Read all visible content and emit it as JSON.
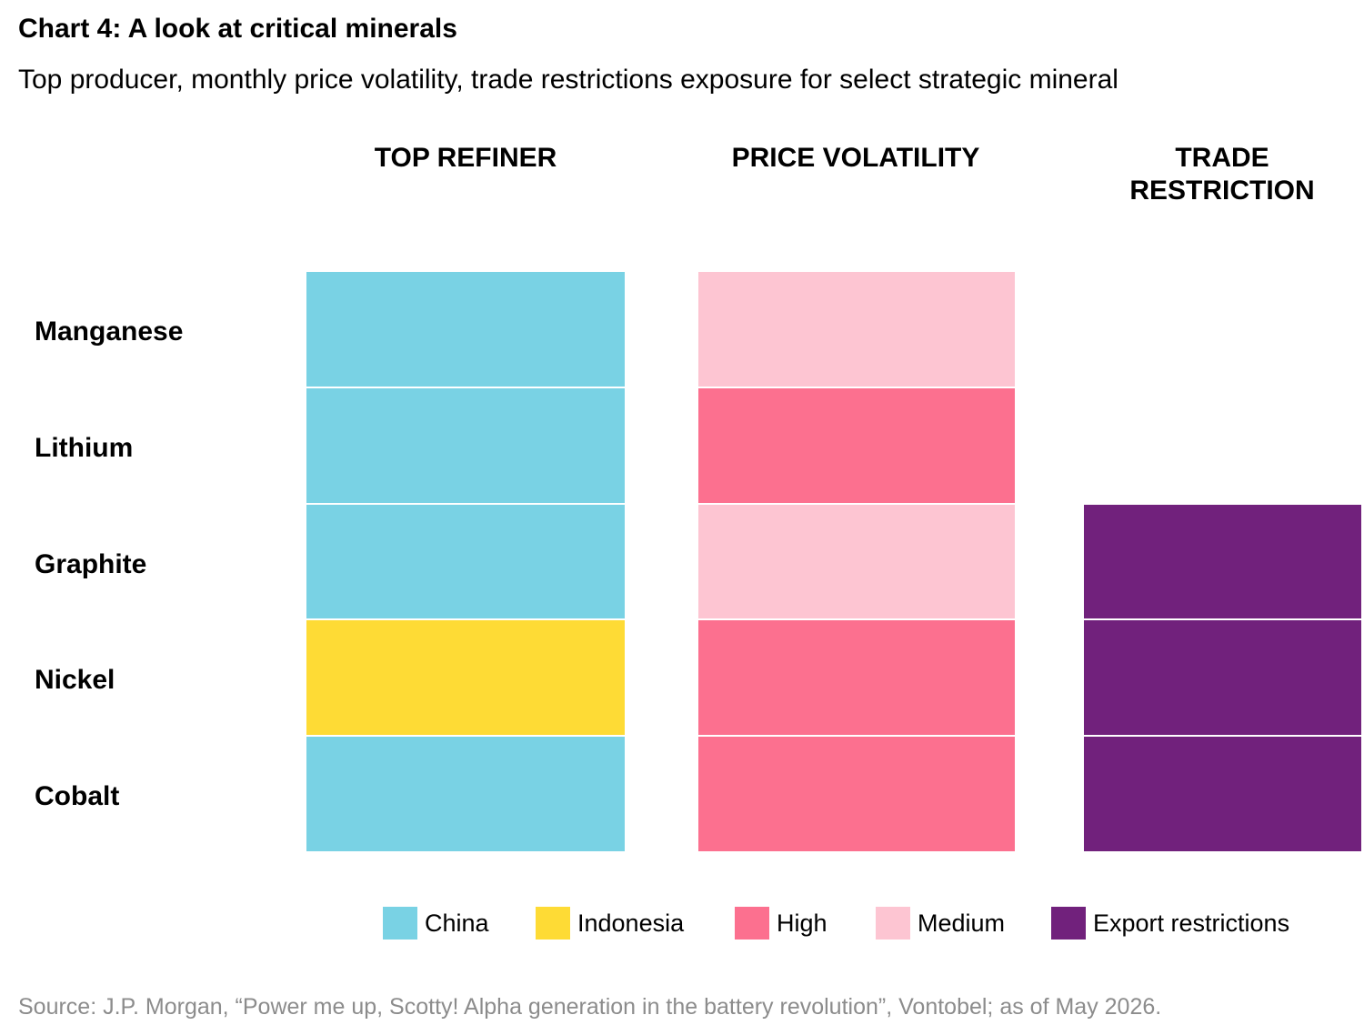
{
  "title": "Chart 4: A look at critical minerals",
  "subtitle": "Top producer, monthly price volatility, trade restrictions exposure for select strategic mineral",
  "source": "Source: J.P. Morgan, “Power me up, Scotty! Alpha generation in the battery revolution”, Vontobel; as of May 2026.",
  "colors": {
    "China": "#79D2E4",
    "Indonesia": "#FEDB35",
    "High": "#FC708F",
    "Medium": "#FDC5D2",
    "Export restrictions": "#71217C"
  },
  "chart_data": {
    "type": "table",
    "rows": [
      "Manganese",
      "Lithium",
      "Graphite",
      "Nickel",
      "Cobalt"
    ],
    "columns": [
      {
        "title_line1": "TOP REFINER",
        "title_line2": "",
        "values": [
          "China",
          "China",
          "China",
          "Indonesia",
          "China"
        ]
      },
      {
        "title_line1": "PRICE VOLATILITY",
        "title_line2": "",
        "values": [
          "Medium",
          "High",
          "Medium",
          "High",
          "High"
        ]
      },
      {
        "title_line1": "TRADE",
        "title_line2": "RESTRICTION",
        "values": [
          "",
          "",
          "Export restrictions",
          "Export restrictions",
          "Export restrictions"
        ]
      }
    ],
    "legend": [
      "China",
      "Indonesia",
      "High",
      "Medium",
      "Export restrictions"
    ]
  }
}
